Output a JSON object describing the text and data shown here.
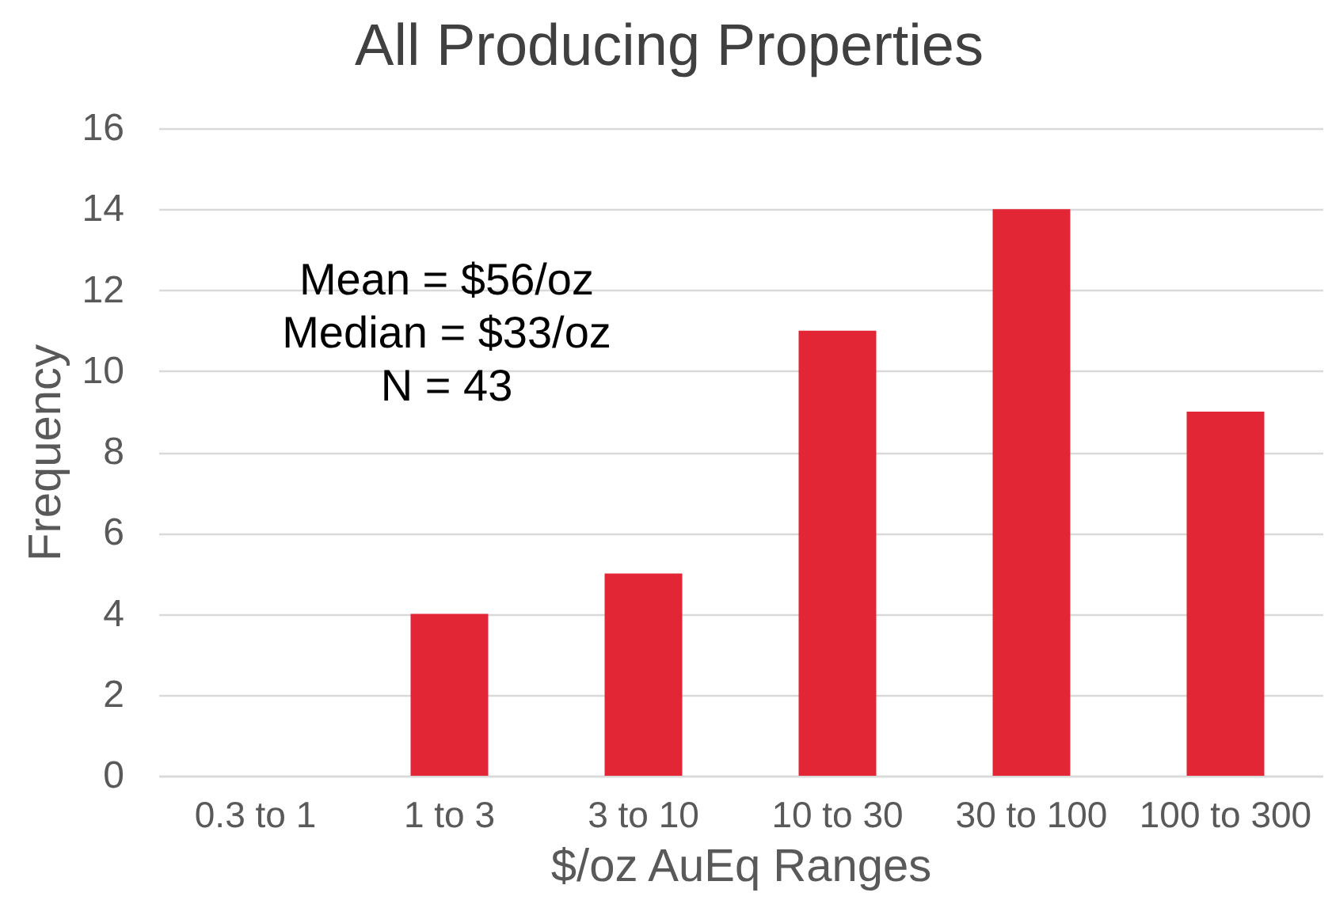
{
  "chart_data": {
    "type": "bar",
    "title": "All Producing Properties",
    "xlabel": "$/oz AuEq Ranges",
    "ylabel": "Frequency",
    "categories": [
      "0.3 to 1",
      "1 to 3",
      "3 to 10",
      "10 to 30",
      "30 to 100",
      "100 to 300"
    ],
    "values": [
      0,
      4,
      5,
      11,
      14,
      9
    ],
    "color": "#e32636",
    "ylim": [
      0,
      16
    ],
    "yticks": [
      0,
      2,
      4,
      6,
      8,
      10,
      12,
      14,
      16
    ],
    "grid": "y",
    "annotations": [
      "Mean = $56/oz",
      "Median = $33/oz",
      "N = 43"
    ]
  }
}
